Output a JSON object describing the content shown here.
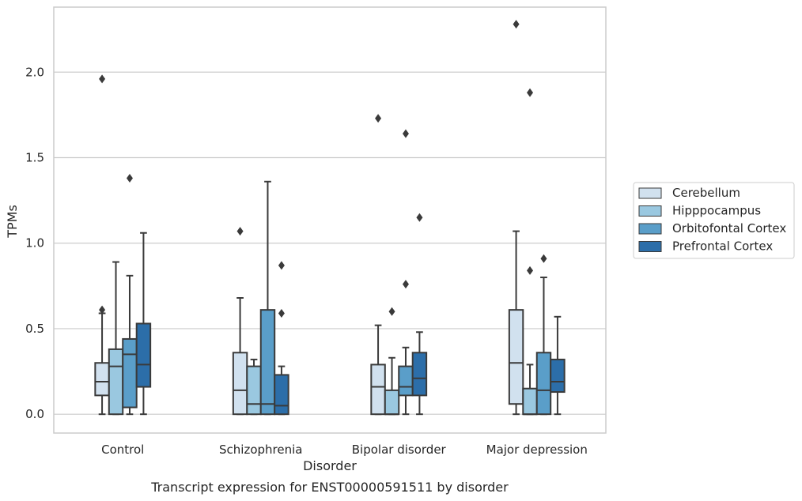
{
  "chart_data": {
    "type": "boxplot",
    "title": "Transcript expression for ENST00000591511 by disorder",
    "xlabel": "Disorder",
    "ylabel": "TPMs",
    "ylim": [
      -0.11,
      2.38
    ],
    "yticks": [
      "0.0",
      "0.5",
      "1.0",
      "1.5",
      "2.0"
    ],
    "grid": true,
    "legend_position": "right",
    "categories": [
      "Control",
      "Schizophrenia",
      "Bipolar disorder",
      "Major depression"
    ],
    "series": [
      {
        "name": "Cerebellum",
        "color": "#d1e1ef",
        "boxes": [
          {
            "min": 0.0,
            "q1": 0.11,
            "median": 0.19,
            "q3": 0.3,
            "max": 0.59,
            "outliers": [
              0.61,
              1.96
            ]
          },
          {
            "min": 0.0,
            "q1": 0.0,
            "median": 0.14,
            "q3": 0.36,
            "max": 0.68,
            "outliers": [
              1.07
            ]
          },
          {
            "min": 0.0,
            "q1": 0.0,
            "median": 0.16,
            "q3": 0.29,
            "max": 0.52,
            "outliers": [
              1.73
            ]
          },
          {
            "min": 0.0,
            "q1": 0.06,
            "median": 0.3,
            "q3": 0.61,
            "max": 1.07,
            "outliers": [
              2.28
            ]
          }
        ]
      },
      {
        "name": "Hipppocampus",
        "color": "#9ac8e0",
        "boxes": [
          {
            "min": 0.0,
            "q1": 0.0,
            "median": 0.28,
            "q3": 0.38,
            "max": 0.89,
            "outliers": []
          },
          {
            "min": 0.0,
            "q1": 0.0,
            "median": 0.06,
            "q3": 0.28,
            "max": 0.32,
            "outliers": []
          },
          {
            "min": 0.0,
            "q1": 0.0,
            "median": 0.0,
            "q3": 0.14,
            "max": 0.33,
            "outliers": [
              0.6
            ]
          },
          {
            "min": 0.0,
            "q1": 0.0,
            "median": 0.0,
            "q3": 0.15,
            "max": 0.29,
            "outliers": [
              0.84,
              1.88
            ]
          }
        ]
      },
      {
        "name": "Orbitofontal Cortex",
        "color": "#5a9ec9",
        "boxes": [
          {
            "min": 0.0,
            "q1": 0.04,
            "median": 0.35,
            "q3": 0.44,
            "max": 0.81,
            "outliers": [
              1.38
            ]
          },
          {
            "min": 0.0,
            "q1": 0.0,
            "median": 0.06,
            "q3": 0.61,
            "max": 1.36,
            "outliers": []
          },
          {
            "min": 0.0,
            "q1": 0.11,
            "median": 0.16,
            "q3": 0.28,
            "max": 0.39,
            "outliers": [
              0.76,
              1.64
            ]
          },
          {
            "min": 0.0,
            "q1": 0.0,
            "median": 0.14,
            "q3": 0.36,
            "max": 0.8,
            "outliers": [
              0.91
            ]
          }
        ]
      },
      {
        "name": "Prefrontal Cortex",
        "color": "#2c6ea9",
        "boxes": [
          {
            "min": 0.0,
            "q1": 0.16,
            "median": 0.29,
            "q3": 0.53,
            "max": 1.06,
            "outliers": []
          },
          {
            "min": 0.0,
            "q1": 0.0,
            "median": 0.05,
            "q3": 0.23,
            "max": 0.28,
            "outliers": [
              0.59,
              0.87
            ]
          },
          {
            "min": 0.0,
            "q1": 0.11,
            "median": 0.21,
            "q3": 0.36,
            "max": 0.48,
            "outliers": [
              1.15
            ]
          },
          {
            "min": 0.0,
            "q1": 0.13,
            "median": 0.19,
            "q3": 0.32,
            "max": 0.57,
            "outliers": []
          }
        ]
      }
    ]
  }
}
